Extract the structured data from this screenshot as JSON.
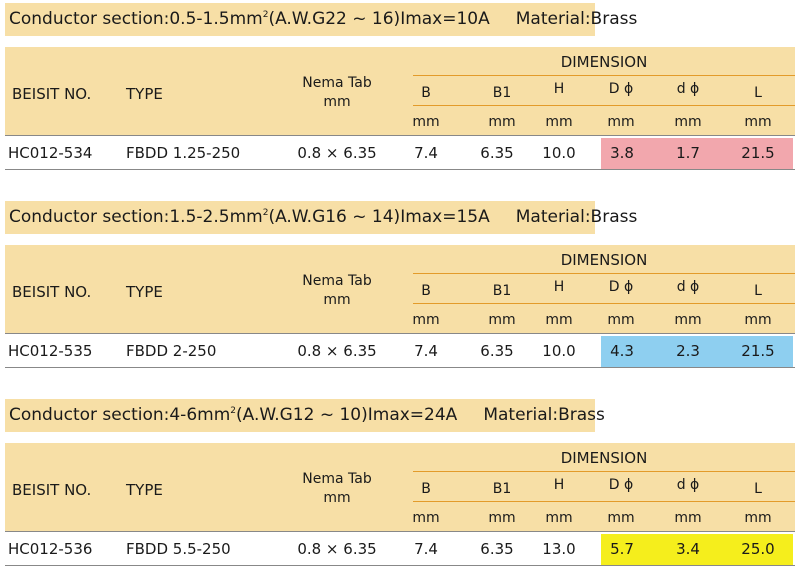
{
  "header_labels": {
    "dimension": "DIMENSION",
    "beisit_no": "BEISIT NO.",
    "type": "TYPE",
    "nema_tab": "Nema Tab",
    "nema_unit": "mm",
    "col_b": "B",
    "col_b1": "B1",
    "col_h": "H",
    "col_d": "D ϕ",
    "col_dsmall": "d ϕ",
    "col_l": "L",
    "unit": "mm"
  },
  "sections": [
    {
      "title_pre": "Conductor section:0.5-1.5mm",
      "title_sup": "2",
      "title_post": "(A.W.G22 ~ 16)Imax=10A",
      "material": "Material:Brass",
      "highlight_color": "#f2a7ad",
      "row": {
        "beisit_no": "HC012-534",
        "type": "FBDD 1.25-250",
        "nema_tab": "0.8 × 6.35",
        "b": "7.4",
        "b1": "6.35",
        "h": "10.0",
        "d": "3.8",
        "dsmall": "1.7",
        "l": "21.5"
      }
    },
    {
      "title_pre": "Conductor section:1.5-2.5mm",
      "title_sup": "2",
      "title_post": "(A.W.G16 ~ 14)Imax=15A",
      "material": "Material:Brass",
      "highlight_color": "#8ecff0",
      "row": {
        "beisit_no": "HC012-535",
        "type": "FBDD 2-250",
        "nema_tab": "0.8 × 6.35",
        "b": "7.4",
        "b1": "6.35",
        "h": "10.0",
        "d": "4.3",
        "dsmall": "2.3",
        "l": "21.5"
      }
    },
    {
      "title_pre": "Conductor section:4-6mm",
      "title_sup": "2",
      "title_post": "(A.W.G12 ~ 10)Imax=24A",
      "material": "Material:Brass",
      "highlight_color": "#f5ee1c",
      "row": {
        "beisit_no": "HC012-536",
        "type": "FBDD 5.5-250",
        "nema_tab": "0.8 × 6.35",
        "b": "7.4",
        "b1": "6.35",
        "h": "13.0",
        "d": "5.7",
        "dsmall": "3.4",
        "l": "25.0"
      }
    }
  ]
}
